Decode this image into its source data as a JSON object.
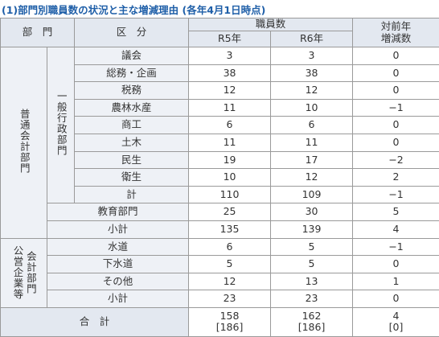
{
  "header": {
    "title": "(1)部門別職員数の状況と主な増減理由 (各年4月1日時点)"
  },
  "table": {
    "headers": {
      "dept": "部　門",
      "category": "区　分",
      "staff": "職員数",
      "r5": "R5年",
      "r6": "R6年",
      "diff": [
        "対前年",
        "増減数"
      ]
    },
    "groups": {
      "futsu": "普通会計部門",
      "ippan": "一般行政部門",
      "koei": [
        "公営企業等",
        "会計部門"
      ]
    },
    "rows": [
      [
        "議会",
        "3",
        "3",
        "0"
      ],
      [
        "総務・企画",
        "38",
        "38",
        "0"
      ],
      [
        "税務",
        "12",
        "12",
        "0"
      ],
      [
        "農林水産",
        "11",
        "10",
        "−1"
      ],
      [
        "商工",
        "6",
        "6",
        "0"
      ],
      [
        "土木",
        "11",
        "11",
        "0"
      ],
      [
        "民生",
        "19",
        "17",
        "−2"
      ],
      [
        "衛生",
        "10",
        "12",
        "2"
      ],
      [
        "計",
        "110",
        "109",
        "−1"
      ],
      [
        "教育部門",
        "25",
        "30",
        "5"
      ],
      [
        "小計",
        "135",
        "139",
        "4"
      ],
      [
        "水道",
        "6",
        "5",
        "−1"
      ],
      [
        "下水道",
        "5",
        "5",
        "0"
      ],
      [
        "その他",
        "12",
        "13",
        "1"
      ],
      [
        "小計",
        "23",
        "23",
        "0"
      ]
    ],
    "total": {
      "label": "合　計",
      "r5": [
        "158",
        "[186]"
      ],
      "r6": [
        "162",
        "[186]"
      ],
      "diff": [
        "4",
        "[0]"
      ]
    }
  }
}
